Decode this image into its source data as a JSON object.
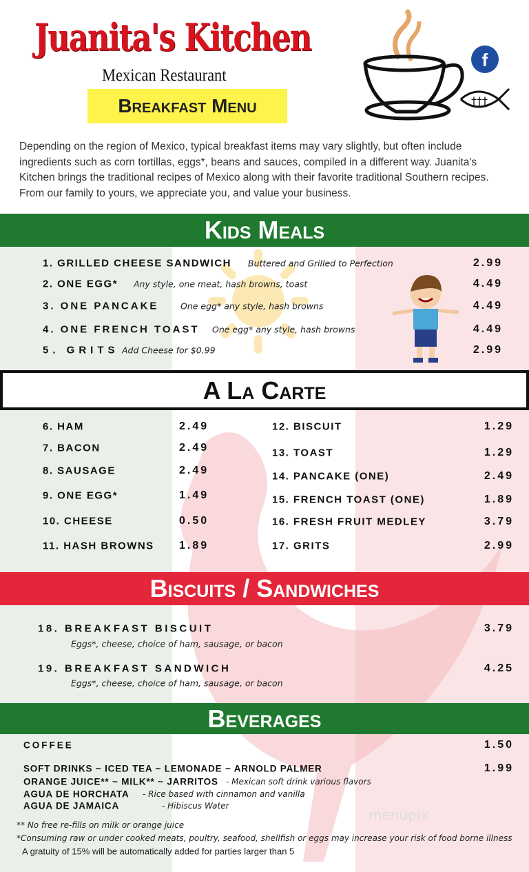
{
  "header": {
    "title": "Juanita's Kitchen",
    "subtitle": "Mexican Restaurant",
    "menu_label": "Breakfast Menu",
    "facebook_icon": "f",
    "brand_red": "#d7141e"
  },
  "intro": "Depending on the region of Mexico, typical breakfast items may vary slightly, but often include ingredients such as corn tortillas, eggs*, beans and sauces, compiled in a different way. Juanita's Kitchen brings the traditional recipes of Mexico along with their favorite traditional Southern recipes.  From our family to yours, we appreciate you, and value your business.",
  "colors": {
    "green": "#1f7a2f",
    "red": "#e3263a",
    "pale_green": "#e9f0ea",
    "pale_red": "#fbe4e5"
  },
  "kids": {
    "heading": "Kids Meals",
    "items": [
      {
        "name": "1. GRILLED CHEESE SANDWICH",
        "desc": "Buttered and Grilled to Perfection",
        "price": "2.99"
      },
      {
        "name": "2. ONE EGG*",
        "desc": "Any style, one meat, hash browns, toast",
        "price": "4.49"
      },
      {
        "name": "3. ONE PANCAKE",
        "desc": "One egg* any style, hash browns",
        "price": "4.49"
      },
      {
        "name": "4. ONE FRENCH TOAST",
        "desc": "One egg* any style, hash browns",
        "price": "4.49"
      },
      {
        "name": "5. GRITS",
        "desc": "Add Cheese for $0.99",
        "price": "2.99"
      }
    ]
  },
  "alacarte": {
    "heading": "A La Carte",
    "left": [
      {
        "name": "6. HAM",
        "price": "2.49"
      },
      {
        "name": "7. BACON",
        "price": "2.49"
      },
      {
        "name": "8. SAUSAGE",
        "price": "2.49"
      },
      {
        "name": "9. ONE EGG*",
        "price": "1.49"
      },
      {
        "name": "10. CHEESE",
        "price": "0.50"
      },
      {
        "name": "11. HASH BROWNS",
        "price": "1.89"
      }
    ],
    "right": [
      {
        "name": "12. BISCUIT",
        "price": "1.29"
      },
      {
        "name": "13. TOAST",
        "price": "1.29"
      },
      {
        "name": "14. PANCAKE (ONE)",
        "price": "2.49"
      },
      {
        "name": "15. FRENCH TOAST (ONE)",
        "price": "1.89"
      },
      {
        "name": "16. FRESH FRUIT MEDLEY",
        "price": "3.79"
      },
      {
        "name": "17. GRITS",
        "price": "2.99"
      }
    ]
  },
  "biscuits": {
    "heading": "Biscuits / Sandwiches",
    "items": [
      {
        "name": "18. BREAKFAST BISCUIT",
        "desc": "Eggs*, cheese, choice of ham, sausage, or bacon",
        "price": "3.79"
      },
      {
        "name": "19. BREAKFAST SANDWICH",
        "desc": "Eggs*, cheese, choice of ham, sausage, or bacon",
        "price": "4.25"
      }
    ]
  },
  "beverages": {
    "heading": "Beverages",
    "items": [
      {
        "name": "COFFEE",
        "desc": "",
        "price": "1.50"
      },
      {
        "name": "SOFT DRINKS ~ ICED TEA ~ LEMONADE ~ ARNOLD PALMER",
        "desc": "",
        "price": "1.99"
      },
      {
        "name": "ORANGE JUICE** ~ MILK** ~ JARRITOS",
        "desc": "- Mexican soft drink various flavors",
        "price": ""
      },
      {
        "name": "AGUA DE HORCHATA",
        "desc": "- Rice based with cinnamon and vanilla",
        "price": ""
      },
      {
        "name": "AGUA DE JAMAICA",
        "desc": "- Hibiscus Water",
        "price": ""
      }
    ]
  },
  "notes": [
    "** No free re-fills on milk or orange juice",
    "*Consuming raw or under cooked meats, poultry, seafood, shellfish or eggs may increase your risk of food borne illness",
    "A gratuity of 15% will be automatically added for parties larger than 5"
  ],
  "watermark": "menupix"
}
